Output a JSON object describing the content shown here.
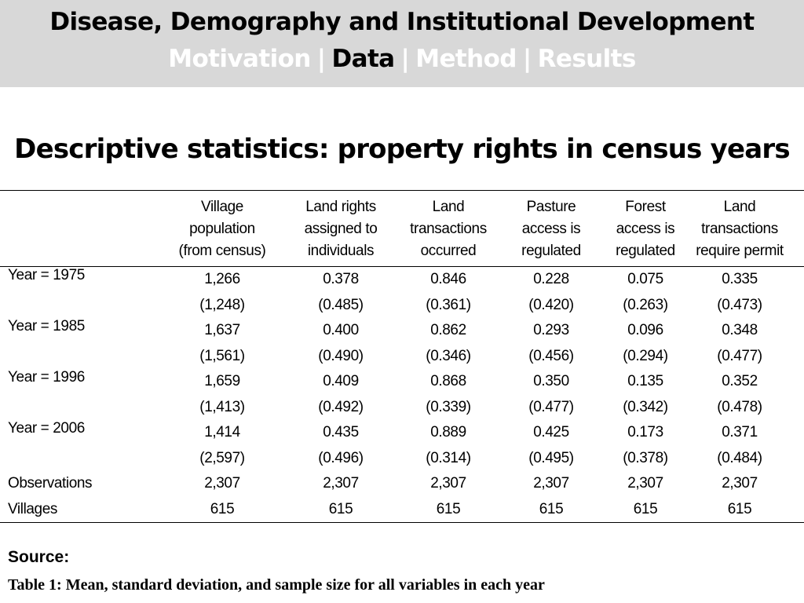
{
  "header": {
    "title": "Disease, Demography and Institutional Development",
    "nav": [
      {
        "label": "Motivation",
        "active": false
      },
      {
        "label": "Data",
        "active": true
      },
      {
        "label": "Method",
        "active": false
      },
      {
        "label": "Results",
        "active": false
      }
    ],
    "separator": "|"
  },
  "slide_title": "Descriptive statistics: property rights in census years",
  "table": {
    "columns": [
      [
        "Village",
        "population",
        "(from census)"
      ],
      [
        "Land rights",
        "assigned to",
        "individuals"
      ],
      [
        "Land",
        "transactions",
        "occurred"
      ],
      [
        "Pasture",
        "access is",
        "regulated"
      ],
      [
        "Forest",
        "access is",
        "regulated"
      ],
      [
        "Land",
        "transactions",
        "require permit"
      ]
    ],
    "rows": [
      {
        "label": "Year = 1975",
        "means": [
          "1,266",
          "0.378",
          "0.846",
          "0.228",
          "0.075",
          "0.335"
        ],
        "sds": [
          "(1,248)",
          "(0.485)",
          "(0.361)",
          "(0.420)",
          "(0.263)",
          "(0.473)"
        ]
      },
      {
        "label": "Year = 1985",
        "means": [
          "1,637",
          "0.400",
          "0.862",
          "0.293",
          "0.096",
          "0.348"
        ],
        "sds": [
          "(1,561)",
          "(0.490)",
          "(0.346)",
          "(0.456)",
          "(0.294)",
          "(0.477)"
        ]
      },
      {
        "label": "Year = 1996",
        "means": [
          "1,659",
          "0.409",
          "0.868",
          "0.350",
          "0.135",
          "0.352"
        ],
        "sds": [
          "(1,413)",
          "(0.492)",
          "(0.339)",
          "(0.477)",
          "(0.342)",
          "(0.478)"
        ]
      },
      {
        "label": "Year = 2006",
        "means": [
          "1,414",
          "0.435",
          "0.889",
          "0.425",
          "0.173",
          "0.371"
        ],
        "sds": [
          "(2,597)",
          "(0.496)",
          "(0.314)",
          "(0.495)",
          "(0.378)",
          "(0.484)"
        ]
      }
    ],
    "observations": {
      "label": "Observations",
      "values": [
        "2,307",
        "2,307",
        "2,307",
        "2,307",
        "2,307",
        "2,307"
      ]
    },
    "villages": {
      "label": "Villages",
      "values": [
        "615",
        "615",
        "615",
        "615",
        "615",
        "615"
      ]
    }
  },
  "source_label": "Source:",
  "caption": "Table 1: Mean, standard deviation, and sample size for all variables in each year"
}
